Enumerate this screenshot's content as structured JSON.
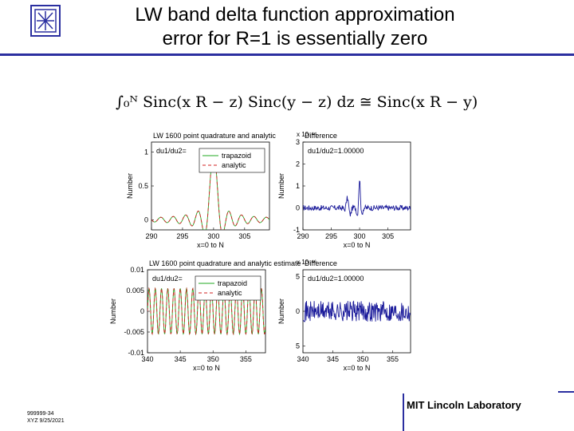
{
  "slide": {
    "title_line1": "LW band delta function approximation",
    "title_line2": "error for R=1 is essentially zero",
    "equation": "∫₀ᴺ Sinc(x R − z) Sinc(y − z) dz ≅ Sinc(x R − y)",
    "footer_id": "999999-34",
    "footer_date": "XYZ 9/25/2021",
    "footer_lab": "MIT Lincoln Laboratory",
    "colors": {
      "rule": "#2b2fa0",
      "trapazoid": "#22aa22",
      "analytic": "#d02020",
      "difference": "#1a1a9a"
    }
  },
  "chart_data": [
    {
      "type": "line",
      "title": "LW 1600 point quadrature and analytic",
      "annotation": "du1/du2=",
      "xlabel": "x=0 to N",
      "ylabel": "Number",
      "xlim": [
        290,
        309
      ],
      "ylim": [
        -0.15,
        1.15
      ],
      "xticks": [
        "290",
        "295",
        "300",
        "305"
      ],
      "yticks": [
        "0",
        "0.5",
        "1"
      ],
      "legend": [
        "trapazoid",
        "analytic"
      ],
      "series": [
        {
          "name": "trapazoid",
          "function": "sinc(x-300)",
          "x_range": [
            290,
            309
          ]
        },
        {
          "name": "analytic",
          "function": "sinc(x-300)",
          "x_range": [
            290,
            309
          ]
        }
      ]
    },
    {
      "type": "line",
      "title": "Difference",
      "exponent": "x 10⁻¹⁴",
      "annotation": "du1/du2=1.00000",
      "xlabel": "x=0 to N",
      "ylabel": "Number",
      "xlim": [
        290,
        309
      ],
      "ylim": [
        -1,
        3
      ],
      "xticks": [
        "290",
        "295",
        "300",
        "305"
      ],
      "yticks": [
        "-1",
        "0",
        "1",
        "2",
        "3"
      ],
      "series": [
        {
          "name": "difference",
          "x_range": [
            290,
            309
          ],
          "peak": {
            "x": 300,
            "y": 1.3
          }
        }
      ]
    },
    {
      "type": "line",
      "title": "LW 1600 point quadrature and analytic estimate",
      "annotation": "du1/du2=",
      "xlabel": "x=0 to N",
      "ylabel": "Number",
      "xlim": [
        340,
        358
      ],
      "ylim": [
        -0.01,
        0.01
      ],
      "xticks": [
        "340",
        "345",
        "350",
        "355"
      ],
      "yticks": [
        "-0.01",
        "-0.005",
        "0",
        "0.005",
        "0.01"
      ],
      "legend": [
        "trapazoid",
        "analytic"
      ],
      "series": [
        {
          "name": "trapazoid",
          "oscillation_amplitude": 0.0055,
          "x_range": [
            340,
            358
          ]
        },
        {
          "name": "analytic",
          "oscillation_amplitude": 0.0055,
          "x_range": [
            340,
            358
          ]
        }
      ]
    },
    {
      "type": "line",
      "title": "Difference",
      "exponent": "x 10⁻¹⁶",
      "annotation": "du1/du2=1.00000",
      "xlabel": "x=0 to N",
      "ylabel": "Number",
      "xlim": [
        340,
        358
      ],
      "ylim": [
        -6,
        6
      ],
      "xticks": [
        "340",
        "345",
        "350",
        "355"
      ],
      "yticks": [
        "5",
        "0",
        "5"
      ],
      "series": [
        {
          "name": "difference",
          "noise_amplitude": 1.5,
          "x_range": [
            340,
            358
          ]
        }
      ]
    }
  ]
}
